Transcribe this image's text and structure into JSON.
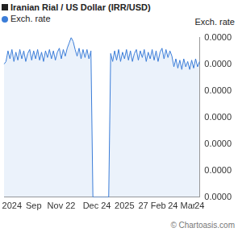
{
  "chart_data": {
    "type": "line",
    "title": "Iranian Rial / US Dollar (IRR/USD)",
    "y_label": "Exch. rate",
    "annotations": [
      "© Chartoasis.com"
    ],
    "categories": [
      null,
      null,
      null,
      null,
      "2024",
      null,
      null,
      null,
      null,
      null,
      null,
      null,
      null,
      null,
      null,
      "Sep",
      null,
      null,
      null,
      null,
      null,
      null,
      null,
      null,
      null,
      null,
      null,
      null,
      null,
      "Nov 22",
      null,
      null,
      null,
      null,
      null,
      null,
      null,
      null,
      null,
      null,
      null,
      null,
      null,
      null,
      null,
      null,
      null,
      "Dec 24",
      null,
      null,
      null,
      null,
      null,
      null,
      null,
      null,
      null,
      null,
      null,
      null,
      null,
      "2025",
      null,
      null,
      null,
      null,
      null,
      null,
      null,
      null,
      null,
      null,
      null,
      null,
      null,
      "27 Feb",
      null,
      null,
      null,
      null,
      null,
      null,
      null,
      null,
      null,
      null,
      null,
      null,
      null,
      null,
      "24 Mar",
      null,
      null,
      null,
      null,
      null,
      null,
      null,
      null,
      "24"
    ],
    "series": [
      {
        "name": "Exch. rate",
        "color": "#3b7dd8",
        "values": [
          2.36e-05,
          2.362e-05,
          2.37e-05,
          2.364e-05,
          2.371e-05,
          2.362e-05,
          2.369e-05,
          2.363e-05,
          2.371e-05,
          2.364e-05,
          2.37e-05,
          2.362e-05,
          2.368e-05,
          2.371e-05,
          2.363e-05,
          2.37e-05,
          2.364e-05,
          2.371e-05,
          2.363e-05,
          2.369e-05,
          2.362e-05,
          2.37e-05,
          2.365e-05,
          2.371e-05,
          2.364e-05,
          2.37e-05,
          2.363e-05,
          2.369e-05,
          2.372e-05,
          2.364e-05,
          2.371e-05,
          2.366e-05,
          2.372e-05,
          2.376e-05,
          2.38e-05,
          2.377e-05,
          2.371e-05,
          2.366e-05,
          2.372e-05,
          2.364e-05,
          2.371e-05,
          2.365e-05,
          2.371e-05,
          2.364e-05,
          2.37e-05,
          2.26e-05,
          2.26e-05,
          2.26e-05,
          2.26e-05,
          2.26e-05,
          2.26e-05,
          2.26e-05,
          2.26e-05,
          2.26e-05,
          2.368e-05,
          2.362e-05,
          2.37e-05,
          2.363e-05,
          2.371e-05,
          2.362e-05,
          2.369e-05,
          2.364e-05,
          2.371e-05,
          2.363e-05,
          2.37e-05,
          2.362e-05,
          2.368e-05,
          2.371e-05,
          2.363e-05,
          2.37e-05,
          2.365e-05,
          2.371e-05,
          2.362e-05,
          2.369e-05,
          2.364e-05,
          2.371e-05,
          2.363e-05,
          2.37e-05,
          2.362e-05,
          2.369e-05,
          2.372e-05,
          2.364e-05,
          2.371e-05,
          2.365e-05,
          2.37e-05,
          2.366e-05,
          2.358e-05,
          2.364e-05,
          2.357e-05,
          2.363e-05,
          2.356e-05,
          2.364e-05,
          2.358e-05,
          2.362e-05,
          2.356e-05,
          2.363e-05,
          2.357e-05,
          2.364e-05,
          2.358e-05,
          2.362e-05
        ]
      }
    ],
    "ylim": [
      2.26e-05,
      2.38e-05
    ],
    "yticks": [
      {
        "value": 2.26e-05,
        "label": "0.0000"
      },
      {
        "value": 2.28e-05,
        "label": "0.0000"
      },
      {
        "value": 2.3e-05,
        "label": "0.0000"
      },
      {
        "value": 2.32e-05,
        "label": "0.0000"
      },
      {
        "value": 2.34e-05,
        "label": "0.0000"
      },
      {
        "value": 2.36e-05,
        "label": "0.0000"
      },
      {
        "value": 2.38e-05,
        "label": "0.0000"
      }
    ],
    "grid": false,
    "legend": "top-left"
  }
}
